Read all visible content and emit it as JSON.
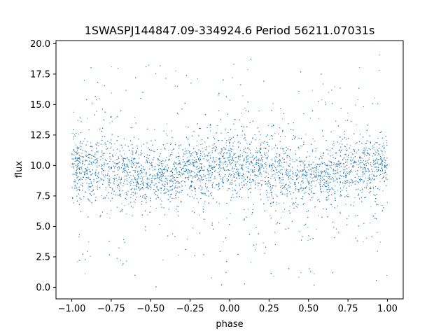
{
  "chart_data": {
    "type": "scatter",
    "title": "1SWASPJ144847.09-334924.6 Period 56211.07031s",
    "xlabel": "phase",
    "ylabel": "flux",
    "xlim": [
      -1.1,
      1.1
    ],
    "ylim": [
      -0.95,
      20.25
    ],
    "xticks": [
      -1.0,
      -0.75,
      -0.5,
      -0.25,
      0.0,
      0.25,
      0.5,
      0.75,
      1.0
    ],
    "xtick_labels": [
      "−1.00",
      "−0.75",
      "−0.50",
      "−0.25",
      "0.00",
      "0.25",
      "0.50",
      "0.75",
      "1.00"
    ],
    "yticks": [
      0.0,
      2.5,
      5.0,
      7.5,
      10.0,
      12.5,
      15.0,
      17.5,
      20.0
    ],
    "ytick_labels": [
      "0.0",
      "2.5",
      "5.0",
      "7.5",
      "10.0",
      "12.5",
      "15.0",
      "17.5",
      "20.0"
    ],
    "grid": false,
    "marker_color": "#1f77b4",
    "series": [
      {
        "x_range": [
          -1.0,
          1.0
        ],
        "y_range": [
          0.0,
          19.3
        ],
        "profile": [
          {
            "phase": -1.0,
            "center": 9.9,
            "core_spread": 1.3
          },
          {
            "phase": -0.75,
            "center": 9.9,
            "core_spread": 1.4
          },
          {
            "phase": -0.5,
            "center": 8.9,
            "core_spread": 1.3
          },
          {
            "phase": -0.25,
            "center": 9.7,
            "core_spread": 1.2
          },
          {
            "phase": 0.0,
            "center": 9.9,
            "core_spread": 1.3
          },
          {
            "phase": 0.25,
            "center": 9.9,
            "core_spread": 1.4
          },
          {
            "phase": 0.5,
            "center": 8.9,
            "core_spread": 1.3
          },
          {
            "phase": 0.75,
            "center": 9.7,
            "core_spread": 1.2
          },
          {
            "phase": 1.0,
            "center": 9.9,
            "core_spread": 1.3
          }
        ]
      }
    ]
  }
}
